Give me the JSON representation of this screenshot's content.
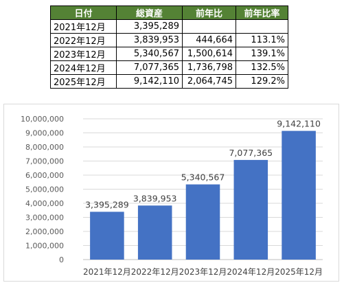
{
  "table": {
    "headers": [
      "日付",
      "総資産",
      "前年比",
      "前年比率"
    ],
    "rows": [
      [
        "2021年12月",
        "3,395,289",
        "",
        ""
      ],
      [
        "2022年12月",
        "3,839,953",
        "444,664",
        "113.1%"
      ],
      [
        "2023年12月",
        "5,340,567",
        "1,500,614",
        "139.1%"
      ],
      [
        "2024年12月",
        "7,077,365",
        "1,736,798",
        "132.5%"
      ],
      [
        "2025年12月",
        "9,142,110",
        "2,064,745",
        "129.2%"
      ]
    ],
    "header_color": "#548235"
  },
  "chart_data": {
    "type": "bar",
    "categories": [
      "2021年12月",
      "2022年12月",
      "2023年12月",
      "2024年12月",
      "2025年12月"
    ],
    "values": [
      3395289,
      3839953,
      5340567,
      7077365,
      9142110
    ],
    "data_labels": [
      "3,395,289",
      "3,839,953",
      "5,340,567",
      "7,077,365",
      "9,142,110"
    ],
    "ylim": [
      0,
      10000000
    ],
    "yticks": [
      0,
      1000000,
      2000000,
      3000000,
      4000000,
      5000000,
      6000000,
      7000000,
      8000000,
      9000000,
      10000000
    ],
    "ytick_labels": [
      "0",
      "1,000,000",
      "2,000,000",
      "3,000,000",
      "4,000,000",
      "5,000,000",
      "6,000,000",
      "7,000,000",
      "8,000,000",
      "9,000,000",
      "10,000,000"
    ],
    "title": "",
    "xlabel": "",
    "ylabel": "",
    "grid": true,
    "bar_color": "#4472c4"
  }
}
